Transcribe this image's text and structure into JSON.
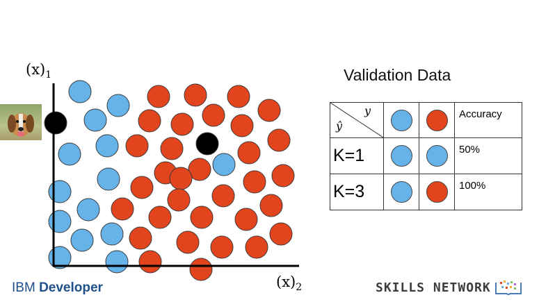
{
  "axis_x1": {
    "label": "(x)",
    "subscript": "1"
  },
  "axis_x2": {
    "label": "(x)",
    "subscript": "2"
  },
  "validation": {
    "title": "Validation Data",
    "header_y": "y",
    "header_yhat": "ŷ",
    "accuracy_header": "Accuracy",
    "rows": [
      {
        "k": "K=1",
        "pred1": "blue",
        "pred2": "blue",
        "accuracy": "50%"
      },
      {
        "k": "K=3",
        "pred1": "blue",
        "pred2": "red",
        "accuracy": "100%"
      }
    ]
  },
  "colors": {
    "blue": "#66b3ea",
    "red": "#e2441e",
    "black": "#000000"
  },
  "footer": {
    "ibm_prefix": "IBM",
    "ibm_bold": "Developer",
    "skills": "SKILLS NETWORK"
  }
}
